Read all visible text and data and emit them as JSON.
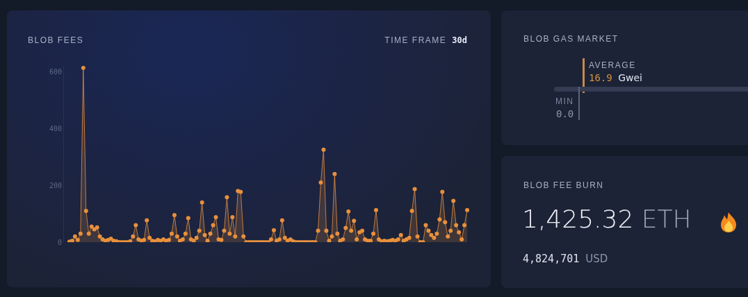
{
  "chart_data": [
    {
      "type": "area",
      "title": "BLOB FEES",
      "annotations": [
        "TIME FRAME",
        "30d"
      ],
      "categories": [
        null,
        null,
        null,
        null,
        null,
        null,
        null,
        null,
        null,
        null,
        null,
        null,
        null,
        null,
        null,
        null,
        null,
        null,
        null,
        null,
        null,
        null,
        null,
        null,
        null,
        null,
        null,
        null,
        null,
        null,
        null,
        null,
        null,
        null,
        null,
        null,
        null,
        null,
        null,
        null,
        null,
        null,
        null,
        null,
        null,
        null,
        null,
        null,
        null,
        null,
        null,
        null,
        null,
        null,
        null,
        null,
        null,
        null,
        null,
        null,
        null,
        null,
        null,
        null,
        null,
        null,
        null,
        null,
        null,
        null,
        null,
        null,
        null,
        null,
        null,
        null,
        null,
        null,
        null,
        null,
        null,
        null,
        null,
        null,
        null,
        null,
        null,
        null,
        null,
        null,
        null,
        null,
        null,
        null,
        null,
        null,
        null,
        null,
        null,
        null,
        null,
        null,
        null,
        null,
        null,
        null,
        null,
        null,
        null,
        null,
        null,
        null,
        null,
        null,
        null,
        null,
        null,
        null,
        null,
        null,
        null,
        null,
        null,
        null,
        null,
        null,
        null,
        null,
        null,
        null,
        null,
        null,
        null,
        null,
        null,
        null,
        null,
        null,
        null,
        null,
        null,
        null,
        null,
        null,
        null
      ],
      "series": [
        {
          "color": "#e8903c",
          "values": [
            2,
            5,
            20,
            8,
            30,
            613,
            110,
            30,
            55,
            45,
            52,
            20,
            10,
            5,
            8,
            12,
            5,
            3,
            0,
            0,
            0,
            0,
            3,
            20,
            60,
            10,
            5,
            8,
            77,
            15,
            5,
            3,
            8,
            5,
            10,
            5,
            8,
            30,
            95,
            20,
            5,
            10,
            30,
            85,
            10,
            5,
            15,
            40,
            140,
            25,
            5,
            30,
            60,
            88,
            10,
            8,
            40,
            158,
            30,
            88,
            20,
            180,
            177,
            20,
            0,
            0,
            0,
            0,
            0,
            0,
            0,
            0,
            0,
            10,
            42,
            5,
            10,
            77,
            15,
            5,
            10,
            3,
            0,
            0,
            0,
            0,
            0,
            0,
            0,
            0,
            40,
            210,
            325,
            40,
            5,
            20,
            240,
            30,
            5,
            10,
            50,
            108,
            40,
            75,
            10,
            35,
            40,
            10,
            5,
            5,
            30,
            113,
            10,
            3,
            5,
            3,
            5,
            8,
            5,
            10,
            25,
            5,
            10,
            15,
            110,
            187,
            20,
            0,
            0,
            60,
            40,
            25,
            15,
            30,
            80,
            177,
            70,
            20,
            40,
            145,
            60,
            35,
            10,
            60,
            113
          ]
        }
      ],
      "ylim": [
        0,
        620
      ],
      "yticks": [
        0,
        200,
        400,
        600
      ],
      "grid": false,
      "marker": "circle",
      "line_style": "solid",
      "tick_labels": "y"
    },
    {
      "type": "other",
      "title": "BLOB GAS MARKET",
      "annotations": [
        "AVERAGE",
        "16.9",
        "Gwei",
        "MIN",
        "0.0"
      ]
    },
    {
      "type": "other",
      "title": "BLOB FEE BURN",
      "annotations": [
        "1,425.32",
        "ETH",
        "4,824,701",
        "USD"
      ]
    }
  ]
}
